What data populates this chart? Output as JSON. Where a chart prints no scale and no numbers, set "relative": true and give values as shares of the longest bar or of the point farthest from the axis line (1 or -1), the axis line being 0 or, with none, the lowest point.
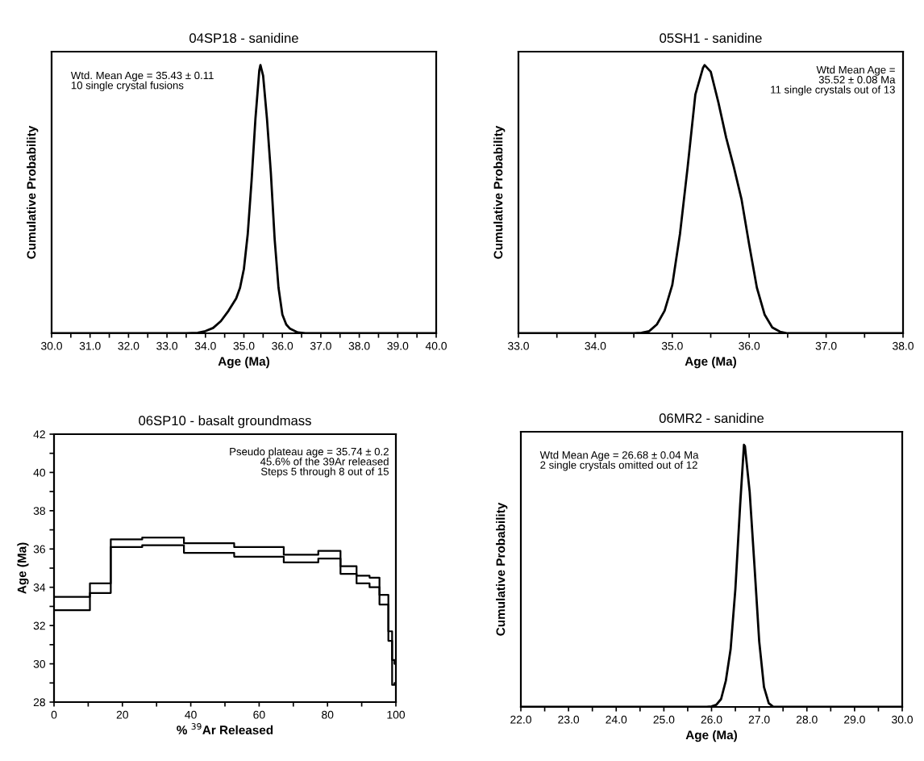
{
  "chart_data": [
    {
      "type": "line",
      "title": "04SP18 - sanidine",
      "xlabel": "Age (Ma)",
      "ylabel": "Cumulative Probability",
      "relative": true,
      "tick_labels": "x",
      "annotations": [
        "Wtd. Mean Age = 35.43 ± 0.11\n10 single crystal fusions"
      ],
      "xlim": [
        30,
        40
      ],
      "xticks": [
        {
          "value": 30,
          "label": "30.0"
        },
        {
          "value": 30.5,
          "label": null
        },
        {
          "value": 31,
          "label": "31.0"
        },
        {
          "value": 31.5,
          "label": null
        },
        {
          "value": 32,
          "label": "32.0"
        },
        {
          "value": 32.5,
          "label": null
        },
        {
          "value": 33,
          "label": "33.0"
        },
        {
          "value": 33.5,
          "label": null
        },
        {
          "value": 34,
          "label": "34.0"
        },
        {
          "value": 34.5,
          "label": null
        },
        {
          "value": 35,
          "label": "35.0"
        },
        {
          "value": 35.5,
          "label": null
        },
        {
          "value": 36,
          "label": "36.0"
        },
        {
          "value": 36.5,
          "label": null
        },
        {
          "value": 37,
          "label": "37.0"
        },
        {
          "value": 37.5,
          "label": null
        },
        {
          "value": 38,
          "label": "38.0"
        },
        {
          "value": 38.5,
          "label": null
        },
        {
          "value": 39,
          "label": "39.0"
        },
        {
          "value": 39.5,
          "label": null
        },
        {
          "value": 40,
          "label": "40.0"
        }
      ],
      "x": [
        30.0,
        33.5,
        33.8,
        34.0,
        34.2,
        34.4,
        34.6,
        34.8,
        34.9,
        35.0,
        35.1,
        35.2,
        35.3,
        35.4,
        35.43,
        35.5,
        35.6,
        35.7,
        35.8,
        35.9,
        36.0,
        36.1,
        36.2,
        36.4,
        36.6,
        40.0
      ],
      "series": [
        {
          "color": "#000000",
          "values": [
            0,
            0,
            0.002,
            0.008,
            0.02,
            0.045,
            0.084,
            0.13,
            0.17,
            0.24,
            0.37,
            0.57,
            0.8,
            0.98,
            1.0,
            0.96,
            0.8,
            0.6,
            0.35,
            0.17,
            0.07,
            0.033,
            0.017,
            0.003,
            0,
            0
          ]
        }
      ]
    },
    {
      "type": "line",
      "title": "05SH1 - sanidine",
      "xlabel": "Age (Ma)",
      "ylabel": "Cumulative Probability",
      "relative": true,
      "tick_labels": "x",
      "annotations": [
        "Wtd Mean Age =\n35.52 ± 0.08 Ma\n11 single crystals out of 13"
      ],
      "xlim": [
        33,
        38
      ],
      "xticks": [
        {
          "value": 33,
          "label": "33.0"
        },
        {
          "value": 33.5,
          "label": null
        },
        {
          "value": 34,
          "label": "34.0"
        },
        {
          "value": 34.5,
          "label": null
        },
        {
          "value": 35,
          "label": "35.0"
        },
        {
          "value": 35.5,
          "label": null
        },
        {
          "value": 36,
          "label": "36.0"
        },
        {
          "value": 36.5,
          "label": null
        },
        {
          "value": 37,
          "label": "37.0"
        },
        {
          "value": 37.5,
          "label": null
        },
        {
          "value": 38,
          "label": "38.0"
        }
      ],
      "x": [
        33.0,
        34.5,
        34.6,
        34.7,
        34.8,
        34.9,
        35.0,
        35.1,
        35.2,
        35.3,
        35.4,
        35.42,
        35.5,
        35.6,
        35.7,
        35.8,
        35.9,
        36.0,
        36.1,
        36.2,
        36.3,
        36.4,
        36.5,
        38.0
      ],
      "series": [
        {
          "color": "#000000",
          "values": [
            0,
            0,
            0.002,
            0.008,
            0.033,
            0.084,
            0.18,
            0.37,
            0.62,
            0.89,
            0.99,
            1.0,
            0.975,
            0.86,
            0.73,
            0.62,
            0.5,
            0.33,
            0.17,
            0.07,
            0.022,
            0.006,
            0,
            0
          ]
        }
      ]
    },
    {
      "type": "step",
      "title": "06SP10 - basalt groundmass",
      "xlabel": "% $^{39}$Ar Released",
      "ylabel": "Age (Ma)",
      "annotations": [
        "Pseudo plateau age = 35.74 ± 0.2\n45.6% of the 39Ar released\nSteps 5 through 8 out of 15"
      ],
      "xlim": [
        0,
        100
      ],
      "ylim": [
        28,
        42
      ],
      "xticks": [
        0,
        {
          "value": 10,
          "label": null
        },
        20,
        {
          "value": 30,
          "label": null
        },
        40,
        {
          "value": 50,
          "label": null
        },
        60,
        {
          "value": 70,
          "label": null
        },
        80,
        {
          "value": 90,
          "label": null
        },
        100
      ],
      "yticks": [
        28,
        {
          "value": 29,
          "label": null
        },
        30,
        {
          "value": 31,
          "label": null
        },
        32,
        {
          "value": 33,
          "label": null
        },
        34,
        {
          "value": 35,
          "label": null
        },
        36,
        {
          "value": 37,
          "label": null
        },
        38,
        {
          "value": 39,
          "label": null
        },
        40,
        {
          "value": 41,
          "label": null
        },
        42
      ],
      "x": [
        0,
        10.5,
        16.6,
        25.8,
        38.0,
        52.7,
        67.2,
        77.3,
        83.8,
        88.5,
        92.3,
        95.2,
        97.8,
        98.9,
        99.6,
        100
      ],
      "series": [
        {
          "color": "#000000",
          "values": [
            33.5,
            34.2,
            36.5,
            36.6,
            36.3,
            36.1,
            35.7,
            35.9,
            35.1,
            34.6,
            34.5,
            33.6,
            31.7,
            30.2,
            30.0,
            30.0
          ]
        },
        {
          "color": "#000000",
          "values": [
            32.8,
            33.7,
            36.1,
            36.2,
            35.8,
            35.6,
            35.3,
            35.5,
            34.7,
            34.2,
            34.0,
            33.1,
            31.2,
            28.9,
            29.0,
            29.0
          ]
        }
      ]
    },
    {
      "type": "line",
      "title": "06MR2 - sanidine",
      "xlabel": "Age (Ma)",
      "ylabel": "Cumulative Probability",
      "relative": true,
      "tick_labels": "x",
      "annotations": [
        "Wtd Mean Age = 26.68 ± 0.04 Ma\n2 single crystals omitted out of 12"
      ],
      "xlim": [
        22,
        30
      ],
      "xticks": [
        {
          "value": 22,
          "label": "22.0"
        },
        {
          "value": 22.5,
          "label": null
        },
        {
          "value": 23,
          "label": "23.0"
        },
        {
          "value": 23.5,
          "label": null
        },
        {
          "value": 24,
          "label": "24.0"
        },
        {
          "value": 24.5,
          "label": null
        },
        {
          "value": 25,
          "label": "25.0"
        },
        {
          "value": 25.5,
          "label": null
        },
        {
          "value": 26,
          "label": "26.0"
        },
        {
          "value": 26.5,
          "label": null
        },
        {
          "value": 27,
          "label": "27.0"
        },
        {
          "value": 27.5,
          "label": null
        },
        {
          "value": 28,
          "label": "28.0"
        },
        {
          "value": 28.5,
          "label": null
        },
        {
          "value": 29,
          "label": "29.0"
        },
        {
          "value": 29.5,
          "label": null
        },
        {
          "value": 30,
          "label": "30.0"
        }
      ],
      "x": [
        22.0,
        25.9,
        26.0,
        26.1,
        26.2,
        26.3,
        26.4,
        26.5,
        26.6,
        26.68,
        26.7,
        26.8,
        26.9,
        27.0,
        27.1,
        27.2,
        27.3,
        30.0
      ],
      "series": [
        {
          "color": "#000000",
          "values": [
            0,
            0,
            0.002,
            0.008,
            0.03,
            0.1,
            0.22,
            0.45,
            0.77,
            1.0,
            0.995,
            0.82,
            0.54,
            0.25,
            0.076,
            0.014,
            0,
            0
          ]
        }
      ]
    }
  ]
}
